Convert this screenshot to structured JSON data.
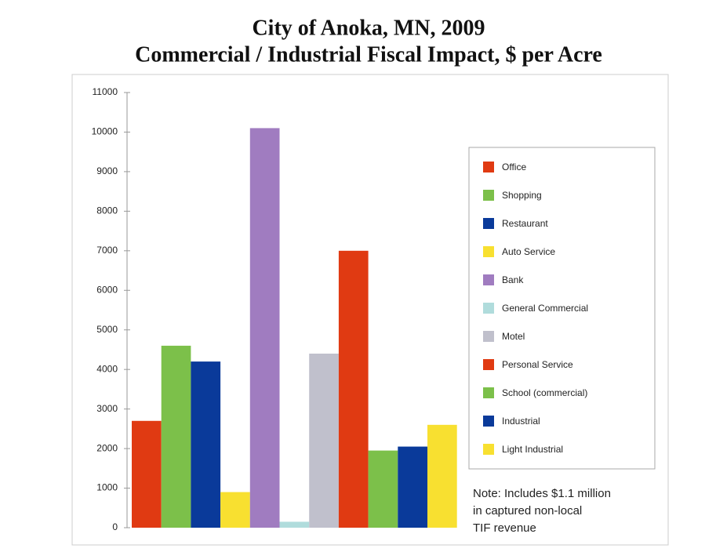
{
  "chart_data": {
    "type": "bar",
    "title": [
      "City of Anoka, MN, 2009",
      "Commercial / Industrial Fiscal Impact, $ per Acre"
    ],
    "categories": [
      "Office",
      "Shopping",
      "Restaurant",
      "Auto Service",
      "Bank",
      "General Commercial",
      "Motel",
      "Personal Service",
      "School (commercial)",
      "Industrial",
      "Light Industrial"
    ],
    "values": [
      2700,
      4600,
      4200,
      900,
      10100,
      150,
      4400,
      7000,
      1950,
      2050,
      2600
    ],
    "colors": [
      "#e03a12",
      "#7cc04a",
      "#0a3a9a",
      "#f8e030",
      "#a07cc0",
      "#b0dcdc",
      "#c0c0cc",
      "#e03a12",
      "#7cc04a",
      "#0a3a9a",
      "#f8e030"
    ],
    "ylim": [
      0,
      11000
    ],
    "yticks": [
      0,
      1000,
      2000,
      3000,
      4000,
      5000,
      6000,
      7000,
      8000,
      9000,
      10000,
      11000
    ],
    "legend": "right",
    "annotation": [
      "Note: Includes $1.1 million",
      "in captured  non-local",
      "TIF revenue"
    ]
  }
}
